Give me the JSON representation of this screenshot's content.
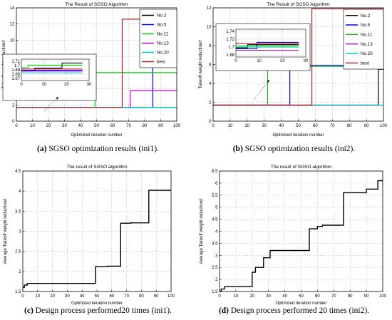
{
  "chart_data": [
    {
      "type": "line",
      "title": "The Result of SGSO Algorithm",
      "xlabel": "Optimized iteration number",
      "ylabel": "Takeoff weight reduction/t",
      "xlim": [
        0,
        100
      ],
      "ylim": [
        0,
        14
      ],
      "xticks": [
        "0",
        "10",
        "20",
        "30",
        "40",
        "50",
        "60",
        "70",
        "80",
        "90",
        "100"
      ],
      "yticks": [
        "0",
        "2",
        "4",
        "6",
        "8",
        "10",
        "12",
        "14"
      ],
      "grid": true,
      "legend_position": "top-right",
      "caption_label": "(a)",
      "caption_text": " SGSO optimization results (ini1).",
      "series": [
        {
          "name": "No.2",
          "color": "#000000",
          "x": [
            0,
            100
          ],
          "y": [
            1.69,
            1.69
          ]
        },
        {
          "name": "No.5",
          "color": "#0000ff",
          "x": [
            0,
            85,
            85,
            100
          ],
          "y": [
            1.69,
            1.69,
            10.2,
            10.2
          ]
        },
        {
          "name": "No.11",
          "color": "#00cc00",
          "x": [
            0,
            49,
            49,
            100
          ],
          "y": [
            1.7,
            1.7,
            6.0,
            6.0
          ]
        },
        {
          "name": "No.13",
          "color": "#cc00cc",
          "x": [
            0,
            71,
            71,
            100
          ],
          "y": [
            1.7,
            1.7,
            3.75,
            3.75
          ]
        },
        {
          "name": "No.20",
          "color": "#00cccc",
          "x": [
            0,
            100
          ],
          "y": [
            1.68,
            1.68
          ]
        },
        {
          "name": "best",
          "color": "#b22222",
          "x": [
            0,
            66,
            66,
            100
          ],
          "y": [
            1.7,
            1.7,
            12.6,
            12.6
          ]
        }
      ],
      "inset": {
        "xlim": [
          0,
          30
        ],
        "ylim": [
          1.665,
          1.715
        ],
        "xticks": [
          "0",
          "10",
          "20",
          "30"
        ],
        "yticks": [
          "1.67",
          "1.68",
          "1.69",
          "1.7",
          "1.71"
        ],
        "series": [
          {
            "color": "#000000",
            "x": [
              0,
              6,
              6,
              18,
              18,
              27
            ],
            "y": [
              1.688,
              1.688,
              1.694,
              1.694,
              1.706,
              1.706
            ]
          },
          {
            "color": "#00cc00",
            "x": [
              0,
              3,
              3,
              27
            ],
            "y": [
              1.695,
              1.695,
              1.701,
              1.701
            ]
          },
          {
            "color": "#cc00cc",
            "x": [
              0,
              27
            ],
            "y": [
              1.687,
              1.687
            ]
          },
          {
            "color": "#0000ff",
            "x": [
              0,
              27
            ],
            "y": [
              1.689,
              1.689
            ]
          },
          {
            "color": "#00cccc",
            "x": [
              0,
              27
            ],
            "y": [
              1.683,
              1.683
            ]
          },
          {
            "color": "#b22222",
            "x": [
              0,
              27
            ],
            "y": [
              1.692,
              1.692
            ]
          }
        ]
      }
    },
    {
      "type": "line",
      "title": "The Result of SGSO Algorithm",
      "xlabel": "Optimized iteration number",
      "ylabel": "Takeoff weight reduction/t",
      "xlim": [
        0,
        100
      ],
      "ylim": [
        0,
        12
      ],
      "xticks": [
        "0",
        "10",
        "20",
        "30",
        "40",
        "50",
        "60",
        "70",
        "80",
        "90",
        "100"
      ],
      "yticks": [
        "0",
        "2",
        "4",
        "6",
        "8",
        "10",
        "12"
      ],
      "grid": true,
      "legend_position": "top-right",
      "caption_label": "(b)",
      "caption_text": " SGSO optimization results (ini2).",
      "series": [
        {
          "name": "No.2",
          "color": "#000000",
          "x": [
            0,
            97,
            97,
            100
          ],
          "y": [
            1.7,
            1.7,
            5.5,
            5.5
          ]
        },
        {
          "name": "No.5",
          "color": "#0000ff",
          "x": [
            0,
            45,
            45,
            100
          ],
          "y": [
            1.7,
            1.7,
            5.9,
            5.9
          ]
        },
        {
          "name": "No.11",
          "color": "#00cc00",
          "x": [
            0,
            32,
            32,
            100
          ],
          "y": [
            1.7,
            1.7,
            5.8,
            5.8
          ]
        },
        {
          "name": "No.13",
          "color": "#cc00cc",
          "x": [
            0,
            100
          ],
          "y": [
            1.69,
            1.69
          ]
        },
        {
          "name": "No.20",
          "color": "#00cccc",
          "x": [
            0,
            100
          ],
          "y": [
            1.7,
            1.7
          ]
        },
        {
          "name": "best",
          "color": "#b22222",
          "x": [
            0,
            58,
            58,
            100
          ],
          "y": [
            1.7,
            1.7,
            11.9,
            11.9
          ]
        }
      ],
      "inset": {
        "xlim": [
          0,
          30
        ],
        "ylim": [
          1.675,
          1.745
        ],
        "xticks": [
          "0",
          "10",
          "20",
          "30"
        ],
        "yticks": [
          "1.68",
          "1.7",
          "1.72",
          "1.74"
        ],
        "series": [
          {
            "color": "#000000",
            "x": [
              0,
              5,
              5,
              27
            ],
            "y": [
              1.698,
              1.698,
              1.706,
              1.706
            ]
          },
          {
            "color": "#00cc00",
            "x": [
              0,
              27
            ],
            "y": [
              1.703,
              1.703
            ]
          },
          {
            "color": "#0000ff",
            "x": [
              0,
              9,
              9,
              27
            ],
            "y": [
              1.696,
              1.696,
              1.712,
              1.712
            ]
          },
          {
            "color": "#cc00cc",
            "x": [
              0,
              27
            ],
            "y": [
              1.692,
              1.692
            ]
          },
          {
            "color": "#00cccc",
            "x": [
              0,
              27
            ],
            "y": [
              1.7,
              1.7
            ]
          },
          {
            "color": "#b22222",
            "x": [
              0,
              27
            ],
            "y": [
              1.709,
              1.709
            ]
          }
        ]
      }
    },
    {
      "type": "line",
      "title": "The result of SGSO algorithm",
      "xlabel": "Optimized iteration number",
      "ylabel": "Average Takeoff weight reduction/t",
      "xlim": [
        0,
        100
      ],
      "ylim": [
        1.5,
        4.5
      ],
      "xticks": [
        "0",
        "10",
        "20",
        "30",
        "40",
        "50",
        "60",
        "70",
        "80",
        "90",
        "100"
      ],
      "yticks": [
        "1.5",
        "2",
        "2.5",
        "3",
        "3.5",
        "4",
        "4.5"
      ],
      "grid": true,
      "caption_label": "(c)",
      "caption_text": " Design process performed20 times (ini1).",
      "series": [
        {
          "color": "#000000",
          "x": [
            0,
            1,
            1,
            3,
            3,
            49,
            49,
            57,
            57,
            66,
            66,
            73,
            73,
            85,
            85,
            100
          ],
          "y": [
            1.6,
            1.6,
            1.66,
            1.66,
            1.7,
            1.7,
            2.12,
            2.12,
            2.13,
            2.13,
            3.2,
            3.2,
            3.21,
            3.21,
            4.02,
            4.02
          ]
        }
      ]
    },
    {
      "type": "line",
      "title": "The result of SGSO algorithm",
      "xlabel": "Optimized iteration number",
      "ylabel": "Average Takeoff weight reduction/t",
      "xlim": [
        0,
        100
      ],
      "ylim": [
        1.5,
        6.5
      ],
      "xticks": [
        "0",
        "10",
        "20",
        "30",
        "40",
        "50",
        "60",
        "70",
        "80",
        "90",
        "100"
      ],
      "yticks": [
        "1.5",
        "2",
        "2.5",
        "3",
        "3.5",
        "4",
        "4.5",
        "5",
        "5.5",
        "6",
        "6.5"
      ],
      "grid": true,
      "caption_label": "(d)",
      "caption_text": " Design process performed 20 times (ini2).",
      "series": [
        {
          "color": "#000000",
          "x": [
            0,
            1,
            1,
            3,
            3,
            20,
            20,
            22,
            22,
            27,
            27,
            31,
            31,
            55,
            55,
            60,
            60,
            63,
            63,
            76,
            76,
            90,
            90,
            97,
            97,
            100
          ],
          "y": [
            1.5,
            1.5,
            1.6,
            1.6,
            1.7,
            1.7,
            2.3,
            2.3,
            2.5,
            2.5,
            2.9,
            2.9,
            3.2,
            3.2,
            4.1,
            4.1,
            4.2,
            4.2,
            4.25,
            4.25,
            5.6,
            5.6,
            5.75,
            5.75,
            6.1,
            6.1
          ]
        }
      ]
    }
  ]
}
